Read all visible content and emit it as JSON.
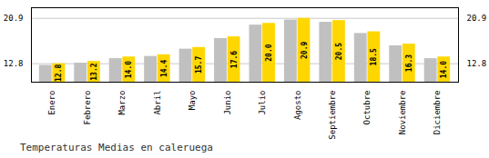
{
  "chart_data": {
    "type": "bar",
    "title": "Temperaturas Medias en caleruega",
    "categories": [
      "Enero",
      "Febrero",
      "Marzo",
      "Abril",
      "Mayo",
      "Junio",
      "Julio",
      "Agosto",
      "Septiembre",
      "Octubre",
      "Noviembre",
      "Diciembre"
    ],
    "series": [
      {
        "color": "#C0C0C0",
        "values": [
          12.5,
          12.9,
          13.7,
          14.1,
          15.4,
          17.3,
          19.7,
          20.6,
          20.2,
          18.2,
          16.0,
          13.7
        ]
      },
      {
        "color": "#FFD700",
        "values": [
          12.8,
          13.2,
          14.0,
          14.4,
          15.7,
          17.6,
          20.0,
          20.9,
          20.5,
          18.5,
          16.3,
          14.0
        ],
        "data_labels": true,
        "value_labels": [
          "12.8",
          "13.2",
          "14.0",
          "14.4",
          "15.7",
          "17.6",
          "20.0",
          "20.9",
          "20.5",
          "18.5",
          "16.3",
          "14.0"
        ]
      }
    ],
    "ylim": [
      9.5,
      22.8
    ],
    "yticks": [
      12.8,
      20.9
    ],
    "grid": true
  }
}
